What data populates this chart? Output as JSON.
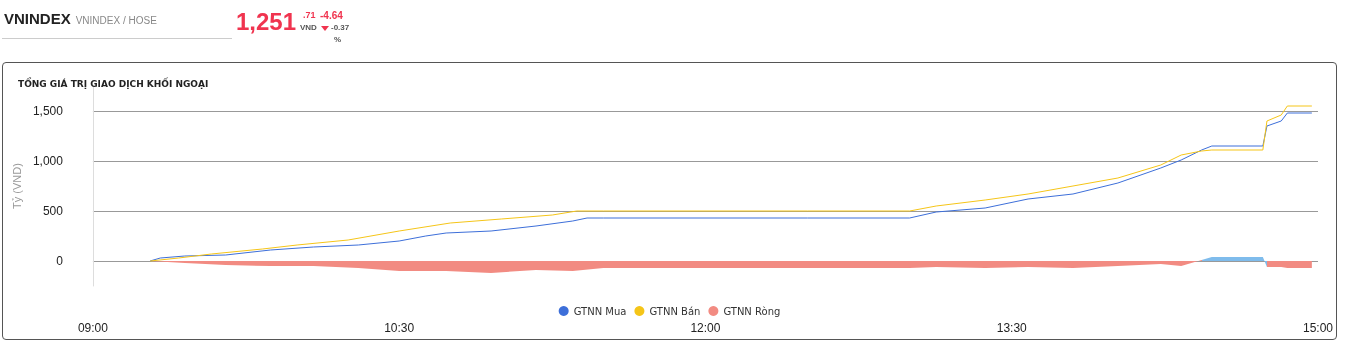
{
  "chart_data": {
    "type": "line",
    "title": "TỔNG GIÁ TRỊ GIAO DỊCH KHỐI NGOẠI",
    "ylabel": "Tỷ (VND)",
    "annotations": [
      "VNINDEX",
      "VNINDEX / HOSE",
      "1,251",
      ".71",
      "VND",
      "-4.64",
      "-0.37",
      "%"
    ],
    "xlim": [
      9,
      15
    ],
    "xticks": [
      {
        "value": 9,
        "label": "09:00"
      },
      {
        "value": 10.5,
        "label": "10:30"
      },
      {
        "value": 12,
        "label": "12:00"
      },
      {
        "value": 13.5,
        "label": "13:30"
      },
      {
        "value": 15,
        "label": "15:00"
      }
    ],
    "ylim": [
      -250,
      1750
    ],
    "yticks": [
      0,
      500,
      {
        "value": 1000,
        "label": "1,000"
      },
      {
        "value": 1500,
        "label": "1,500"
      }
    ],
    "grid": "y",
    "legend": "bottom",
    "marker": "none",
    "line_style": "solid",
    "series": [
      {
        "name": "GTNN Mua",
        "color": "#3d6fd9",
        "x": [
          9.28,
          9.33,
          9.45,
          9.65,
          9.87,
          10.08,
          10.3,
          10.5,
          10.63,
          10.73,
          10.95,
          11.17,
          11.35,
          11.42,
          11.5,
          12.5,
          13,
          13.13,
          13.37,
          13.58,
          13.8,
          14.02,
          14.23,
          14.33,
          14.43,
          14.48,
          14.73,
          14.75,
          14.82,
          14.85,
          14.97
        ],
        "values": [
          0,
          30,
          50,
          60,
          110,
          140,
          160,
          200,
          250,
          280,
          300,
          350,
          400,
          430,
          430,
          430,
          430,
          490,
          530,
          620,
          670,
          780,
          930,
          1010,
          1110,
          1150,
          1150,
          1350,
          1400,
          1480,
          1480
        ]
      },
      {
        "name": "GTNN Bán",
        "color": "#f5c518",
        "x": [
          9.28,
          9.42,
          9.58,
          9.83,
          10,
          10.25,
          10.5,
          10.75,
          11,
          11.25,
          11.37,
          11.5,
          12.5,
          13,
          13.13,
          13.37,
          13.58,
          13.8,
          14.02,
          14.23,
          14.33,
          14.43,
          14.48,
          14.73,
          14.75,
          14.82,
          14.85,
          14.97
        ],
        "values": [
          0,
          30,
          70,
          120,
          160,
          210,
          300,
          380,
          420,
          460,
          500,
          500,
          500,
          500,
          550,
          610,
          670,
          750,
          830,
          960,
          1060,
          1100,
          1110,
          1110,
          1400,
          1460,
          1550,
          1550
        ]
      },
      {
        "name": "GTNN Ròng",
        "type": "area",
        "color": "#f28b82",
        "x": [
          9.28,
          9.45,
          9.65,
          9.87,
          10.08,
          10.3,
          10.5,
          10.73,
          10.95,
          11.17,
          11.35,
          11.5,
          12.5,
          13,
          13.13,
          13.37,
          13.58,
          13.8,
          14.02,
          14.23,
          14.33,
          14.43,
          14.48,
          14.73,
          14.75,
          14.82,
          14.85,
          14.97
        ],
        "values": [
          0,
          -20,
          -40,
          -50,
          -50,
          -70,
          -100,
          -100,
          -120,
          -90,
          -100,
          -70,
          -70,
          -70,
          -60,
          -70,
          -60,
          -70,
          -50,
          -30,
          -50,
          10,
          40,
          40,
          -60,
          -60,
          -70,
          -70
        ],
        "colors": [
          "#f28b82",
          "#f28b82",
          "#f28b82",
          "#f28b82",
          "#f28b82",
          "#f28b82",
          "#f28b82",
          "#f28b82",
          "#f28b82",
          "#f28b82",
          "#f28b82",
          "#f28b82",
          "#f28b82",
          "#f28b82",
          "#f28b82",
          "#f28b82",
          "#f28b82",
          "#f28b82",
          "#f28b82",
          "#f28b82",
          "#f28b82",
          "#7fbcec",
          "#7fbcec",
          "#7fbcec",
          "#f28b82",
          "#f28b82",
          "#f28b82",
          "#f28b82"
        ]
      }
    ]
  }
}
